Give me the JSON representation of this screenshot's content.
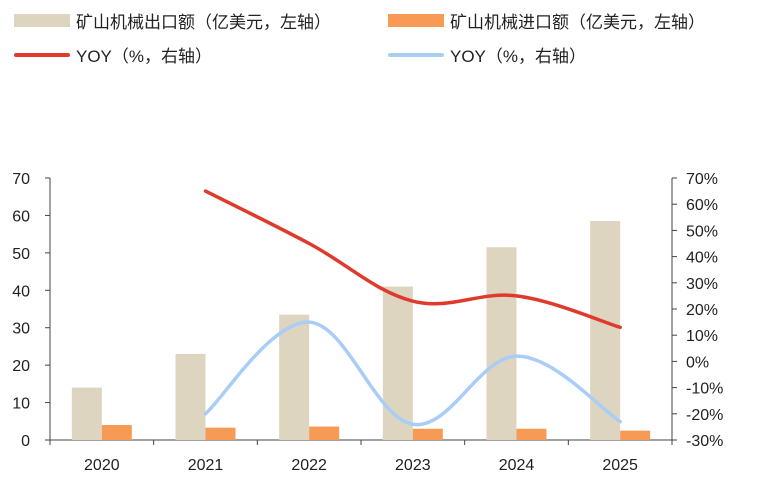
{
  "chart_data": {
    "type": "bar",
    "categories": [
      "2020",
      "2021",
      "2022",
      "2023",
      "2024",
      "2025"
    ],
    "series": [
      {
        "name": "矿山机械出口额（亿美元，左轴）",
        "kind": "bar",
        "axis": "left",
        "color": "#ddd5bf",
        "values": [
          14,
          23,
          33.5,
          41,
          51.5,
          58.5
        ]
      },
      {
        "name": "矿山机械进口额（亿美元，左轴）",
        "kind": "bar",
        "axis": "left",
        "color": "#f79a55",
        "values": [
          4,
          3.3,
          3.6,
          3.0,
          3.0,
          2.5
        ]
      },
      {
        "name": "YOY（%，右轴）",
        "kind": "line",
        "axis": "right",
        "color": "#e03a2e",
        "values": [
          null,
          65,
          45,
          23,
          25,
          13
        ]
      },
      {
        "name": "YOY（%，右轴）",
        "kind": "line",
        "axis": "right",
        "color": "#a9cdf7",
        "values": [
          null,
          -20,
          15,
          -24,
          2,
          -23
        ]
      }
    ],
    "left_axis": {
      "ylim": [
        0,
        70
      ],
      "ticks": [
        "0",
        "10",
        "20",
        "30",
        "40",
        "50",
        "60",
        "70"
      ]
    },
    "right_axis": {
      "ylim": [
        -30,
        70
      ],
      "ticks": [
        "-30%",
        "-20%",
        "-10%",
        "0%",
        "10%",
        "20%",
        "30%",
        "40%",
        "50%",
        "60%",
        "70%"
      ]
    },
    "grid": false,
    "legend_position": "top"
  }
}
